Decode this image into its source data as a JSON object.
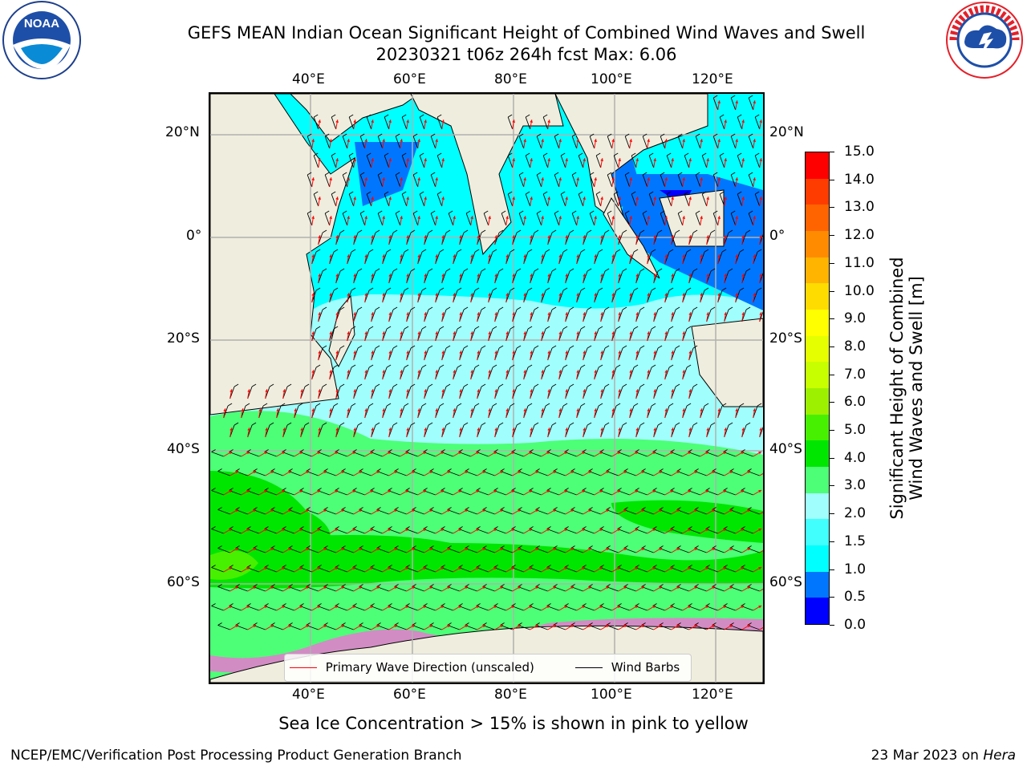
{
  "header": {
    "title_line1": "GEFS MEAN Indian Ocean Significant Height of Combined Wind Waves and Swell",
    "title_line2": "20230321 t06z 264h fcst   Max: 6.06"
  },
  "logos": {
    "left": "noara-logo",
    "right": "national-weather-service-logo"
  },
  "map": {
    "lon_labels": [
      "40°E",
      "60°E",
      "80°E",
      "100°E",
      "120°E"
    ],
    "lat_labels": [
      "20°N",
      "0°",
      "20°S",
      "40°S",
      "60°S"
    ],
    "colors": {
      "land": "#efeddd",
      "grid": "#b0b0b0",
      "coast": "#000000",
      "arrow": "#ff0000",
      "barb": "#000000"
    }
  },
  "legend": {
    "wave_dir_label": "Primary Wave Direction (unscaled)",
    "wind_barb_label": "Wind Barbs",
    "wave_dir_color": "#ff0000",
    "wind_barb_color": "#000000"
  },
  "colorbar": {
    "label_line1": "Significant Height of Combined",
    "label_line2": "Wind Waves and Swell [m]",
    "ticks": [
      "15.0",
      "14.0",
      "13.0",
      "12.0",
      "11.0",
      "10.0",
      "9.0",
      "8.0",
      "7.0",
      "6.0",
      "5.0",
      "4.0",
      "3.0",
      "2.0",
      "1.5",
      "1.0",
      "0.5",
      "0.0"
    ],
    "colors_bottom_to_top": [
      "#0000ff",
      "#0076ff",
      "#00ffff",
      "#40fffc",
      "#a0fffc",
      "#4dff77",
      "#00e600",
      "#47f000",
      "#9cf000",
      "#c8ff00",
      "#e6ff00",
      "#ffff00",
      "#ffdc00",
      "#ffb400",
      "#ff8c00",
      "#ff6400",
      "#ff3c00",
      "#ff0000"
    ]
  },
  "sea_ice_note": "Sea Ice Concentration > 15% is shown in pink to yellow",
  "footer": {
    "left": "NCEP/EMC/Verification Post Processing Product Generation Branch",
    "right_date": "23 Mar 2023 on ",
    "right_host": "Hera"
  }
}
